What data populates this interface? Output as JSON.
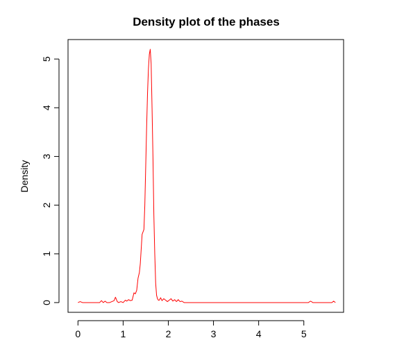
{
  "chart_data": {
    "type": "line",
    "title": "Density plot of the phases",
    "xlabel": "",
    "ylabel": "Density",
    "xlim": [
      -0.22,
      5.88
    ],
    "ylim": [
      -0.2,
      5.4
    ],
    "x_ticks": [
      0,
      1,
      2,
      3,
      4,
      5
    ],
    "y_ticks": [
      0,
      1,
      2,
      3,
      4,
      5
    ],
    "grid": false,
    "legend": "none",
    "series": [
      {
        "color": "#ff0000",
        "x": [
          0.0,
          0.05,
          0.1,
          0.2,
          0.3,
          0.4,
          0.48,
          0.52,
          0.56,
          0.6,
          0.64,
          0.7,
          0.75,
          0.8,
          0.83,
          0.87,
          0.9,
          0.95,
          1.0,
          1.05,
          1.08,
          1.12,
          1.16,
          1.2,
          1.24,
          1.27,
          1.3,
          1.33,
          1.36,
          1.38,
          1.4,
          1.42,
          1.44,
          1.46,
          1.48,
          1.5,
          1.52,
          1.54,
          1.56,
          1.58,
          1.6,
          1.62,
          1.64,
          1.66,
          1.68,
          1.7,
          1.72,
          1.74,
          1.76,
          1.78,
          1.8,
          1.83,
          1.86,
          1.9,
          1.94,
          1.98,
          2.02,
          2.06,
          2.1,
          2.14,
          2.18,
          2.22,
          2.26,
          2.3,
          2.35,
          2.45,
          2.6,
          3.0,
          3.5,
          4.0,
          4.5,
          5.0,
          5.05,
          5.1,
          5.15,
          5.2,
          5.3,
          5.45,
          5.55,
          5.62,
          5.66,
          5.7
        ],
        "y": [
          0.0,
          0.02,
          0.0,
          0.0,
          0.0,
          0.0,
          0.0,
          0.04,
          0.0,
          0.03,
          0.0,
          0.0,
          0.02,
          0.04,
          0.11,
          0.02,
          0.0,
          0.02,
          0.0,
          0.05,
          0.03,
          0.06,
          0.04,
          0.05,
          0.2,
          0.18,
          0.25,
          0.5,
          0.62,
          0.8,
          1.1,
          1.4,
          1.45,
          1.5,
          2.0,
          2.8,
          3.6,
          4.3,
          4.8,
          5.1,
          5.2,
          4.9,
          4.0,
          3.0,
          1.8,
          1.0,
          0.4,
          0.15,
          0.08,
          0.05,
          0.05,
          0.1,
          0.04,
          0.08,
          0.05,
          0.02,
          0.05,
          0.08,
          0.03,
          0.06,
          0.02,
          0.06,
          0.02,
          0.03,
          0.0,
          0.0,
          0.0,
          0.0,
          0.0,
          0.0,
          0.0,
          0.0,
          0.0,
          0.0,
          0.03,
          0.0,
          0.0,
          0.0,
          0.0,
          0.0,
          0.03,
          0.0
        ]
      }
    ]
  }
}
